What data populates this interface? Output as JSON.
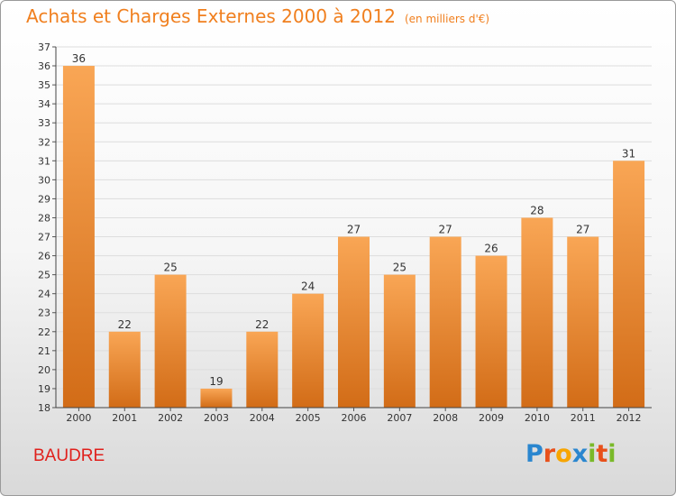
{
  "title": "Achats et Charges Externes 2000 à 2012",
  "title_unit": "(en milliers d'€)",
  "commune": "BAUDRE",
  "logo": {
    "text": "Proxiti",
    "letters": [
      {
        "ch": "P",
        "color": "#2a86cf"
      },
      {
        "ch": "r",
        "color": "#e8501a"
      },
      {
        "ch": "o",
        "color": "#f7a500"
      },
      {
        "ch": "x",
        "color": "#2a86cf"
      },
      {
        "ch": "i",
        "color": "#7ab929"
      },
      {
        "ch": "t",
        "color": "#e8501a"
      },
      {
        "ch": "i",
        "color": "#7ab929"
      }
    ]
  },
  "colors": {
    "bar_top": "#f9a655",
    "bar_bottom": "#d26c17",
    "title": "#f07f1e",
    "commune": "#e0201c"
  },
  "chart_data": {
    "type": "bar",
    "title": "Achats et Charges Externes 2000 à 2012",
    "subtitle": "(en milliers d'€)",
    "xlabel": "",
    "ylabel": "",
    "categories": [
      "2000",
      "2001",
      "2002",
      "2003",
      "2004",
      "2005",
      "2006",
      "2007",
      "2008",
      "2009",
      "2010",
      "2011",
      "2012"
    ],
    "values": [
      36,
      22,
      25,
      19,
      22,
      24,
      27,
      25,
      27,
      26,
      28,
      27,
      31
    ],
    "ylim": [
      18,
      37
    ],
    "yticks": [
      18,
      19,
      20,
      21,
      22,
      23,
      24,
      25,
      26,
      27,
      28,
      29,
      30,
      31,
      32,
      33,
      34,
      35,
      36,
      37
    ],
    "grid": true,
    "data_labels": true
  }
}
